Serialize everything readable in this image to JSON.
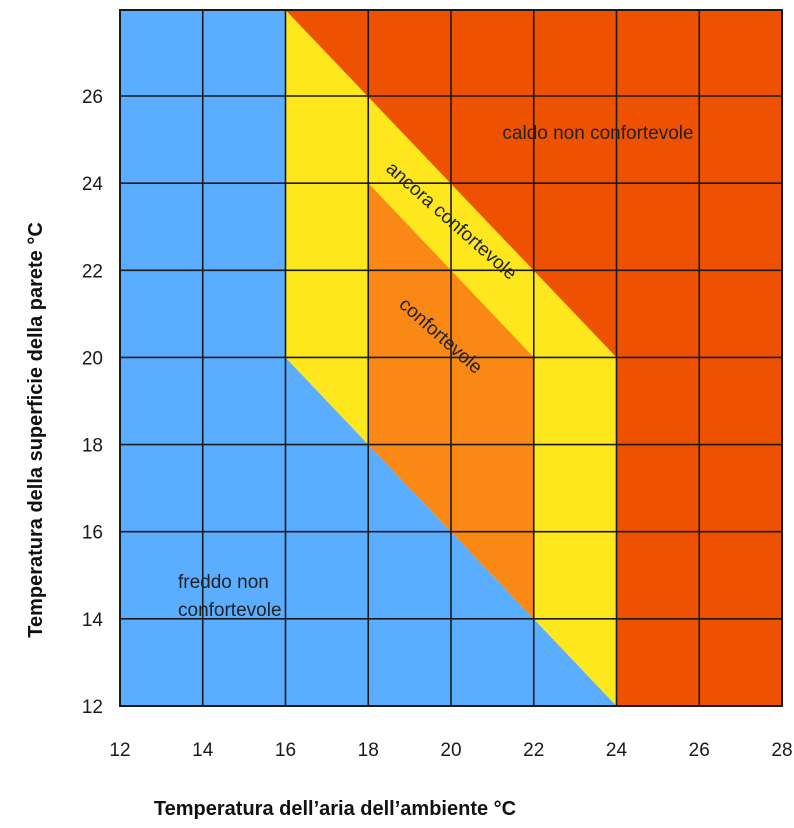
{
  "chart_data": {
    "type": "heatmap",
    "title": "",
    "xlabel": "Temperatura dell’aria dell’ambiente °C",
    "ylabel": "Temperatura della superficie della parete °C",
    "xlim": [
      12,
      28
    ],
    "ylim": [
      12,
      28
    ],
    "x_ticks": [
      12,
      14,
      16,
      18,
      20,
      22,
      24,
      26,
      28
    ],
    "y_ticks": [
      12,
      14,
      16,
      18,
      20,
      22,
      24,
      26
    ],
    "grid": true,
    "zones": [
      {
        "label": "freddo non confortevole",
        "label_lines": [
          "freddo non",
          "confortevole"
        ],
        "color": "#5aadff",
        "polygon": [
          [
            12,
            12
          ],
          [
            24,
            12
          ],
          [
            16,
            20
          ],
          [
            16,
            28
          ],
          [
            12,
            28
          ]
        ]
      },
      {
        "label": "ancora confortevole",
        "label_lines": [
          "ancora confortevole"
        ],
        "color": "#fee71c",
        "polygon": [
          [
            16,
            20
          ],
          [
            24,
            12
          ],
          [
            24,
            20
          ],
          [
            18,
            26
          ],
          [
            16,
            28
          ]
        ]
      },
      {
        "label": "confortevole",
        "label_lines": [
          "confortevole"
        ],
        "color": "#f98814",
        "polygon": [
          [
            18,
            18
          ],
          [
            22,
            14
          ],
          [
            22,
            20
          ],
          [
            18,
            24
          ]
        ]
      },
      {
        "label": "caldo non confortevole",
        "label_lines": [
          "caldo non confortevole"
        ],
        "color": "#ee5200",
        "polygon": [
          [
            16,
            28
          ],
          [
            28,
            28
          ],
          [
            28,
            12
          ],
          [
            24,
            12
          ],
          [
            24,
            20
          ]
        ]
      }
    ]
  }
}
